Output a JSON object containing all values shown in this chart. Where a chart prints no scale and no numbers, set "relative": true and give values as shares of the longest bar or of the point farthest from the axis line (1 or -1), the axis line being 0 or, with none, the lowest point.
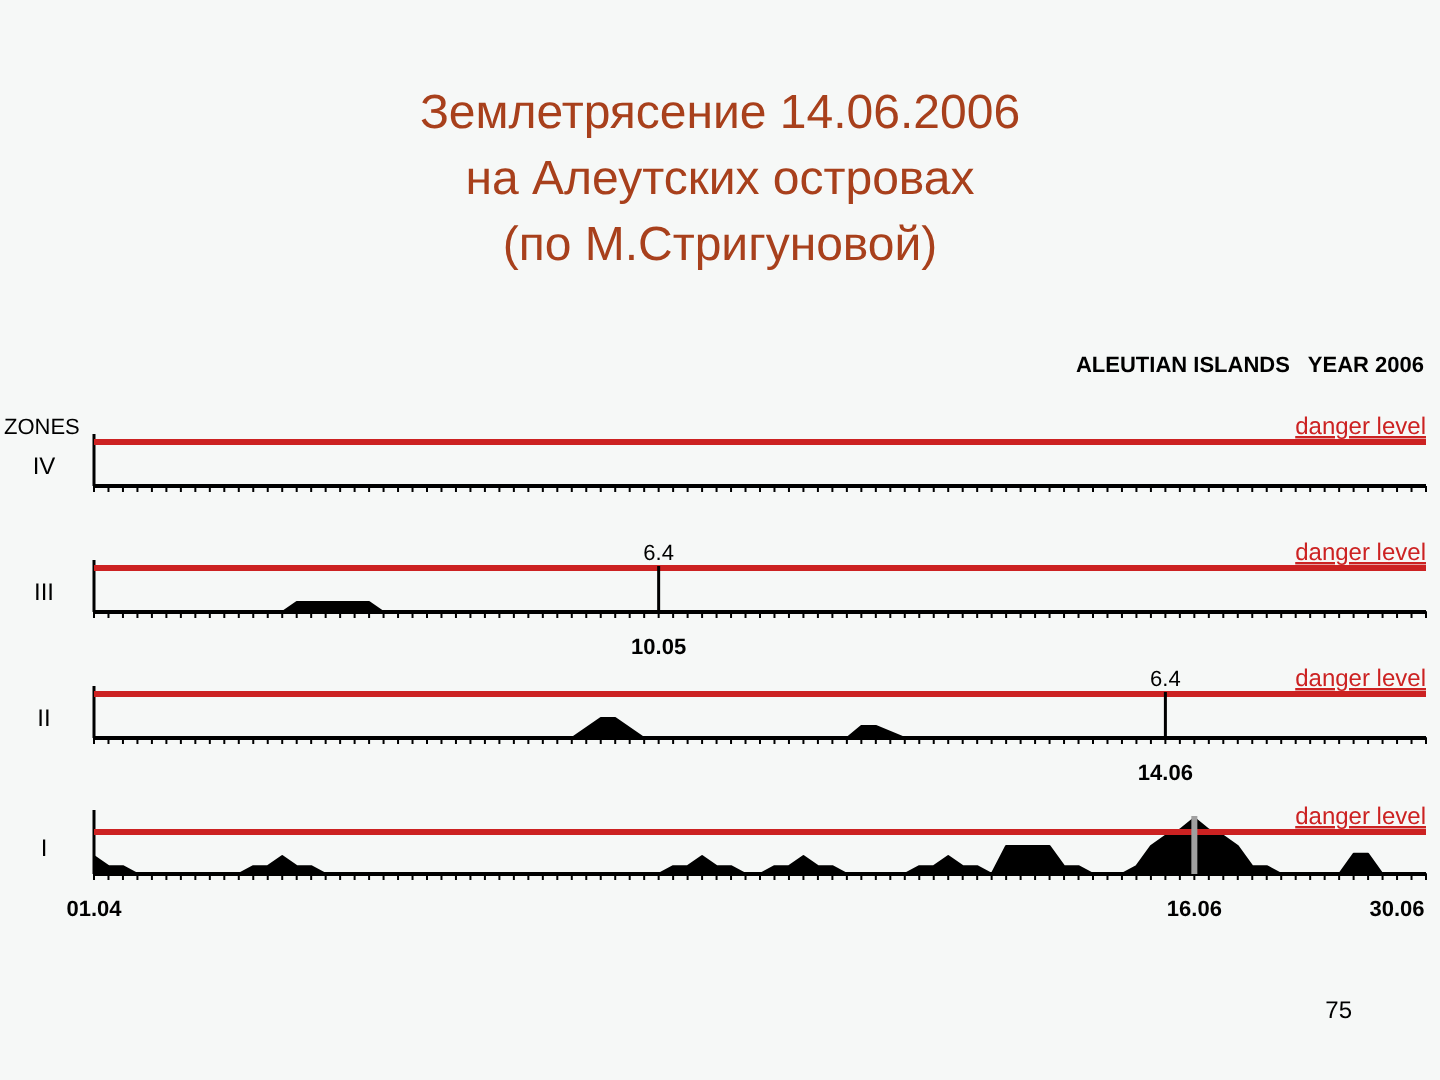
{
  "chart_data": [
    {
      "type": "other",
      "title": "Землетрясение 14.06.2006\nна Алеутских островах\n(по М.Стригуновой)",
      "annotations": [
        "ALEUTIAN ISLANDS   YEAR 2006",
        "ZONES",
        "danger level",
        "75"
      ],
      "ylabel": "IV"
    },
    {
      "type": "area",
      "ylabel": "III",
      "relative": true,
      "tick_labels": false,
      "xlim": [
        "--04-01",
        "--07-02"
      ],
      "annotations": [
        "10.05"
      ],
      "series": [
        {
          "color": "#000000",
          "x": [
            "--04-01",
            "--04-14",
            "--04-15",
            "--04-20",
            "--04-21",
            "--07-02"
          ],
          "values": [
            0,
            0,
            1,
            1,
            0,
            0
          ]
        }
      ],
      "ref_lines": [
        {
          "axis": "y",
          "value": 4.4,
          "label": "danger level",
          "color": "#cc2222"
        },
        {
          "axis": "x",
          "value": "--05-10",
          "label": "6.4",
          "color": "#000000"
        }
      ]
    },
    {
      "type": "area",
      "ylabel": "II",
      "relative": true,
      "tick_labels": false,
      "xlim": [
        "--04-01",
        "--07-02"
      ],
      "annotations": [
        "14.06"
      ],
      "series": [
        {
          "color": "#000000",
          "x": [
            "--04-01",
            "--05-04",
            "--05-06",
            "--05-07",
            "--05-09",
            "--05-23",
            "--05-24",
            "--05-25",
            "--05-27",
            "--07-02"
          ],
          "values": [
            0,
            0,
            1,
            1,
            0,
            0,
            0.6,
            0.6,
            0,
            0
          ]
        }
      ],
      "ref_lines": [
        {
          "axis": "y",
          "value": 2.2,
          "label": "danger level",
          "color": "#cc2222"
        },
        {
          "axis": "x",
          "value": "--06-14",
          "label": "6.4",
          "color": "#000000"
        }
      ]
    },
    {
      "type": "area",
      "ylabel": "I",
      "relative": true,
      "tick_labels": "x",
      "xlim": [
        "--04-01",
        "--07-02"
      ],
      "xticks": [
        {
          "value": "--04-01",
          "label": "01.04"
        },
        {
          "value": "--06-16",
          "label": "16.06"
        },
        {
          "value": "--06-30",
          "label": "30.06"
        }
      ],
      "series": [
        {
          "color": "#000000",
          "x": [
            "--04-01",
            "--04-02",
            "--04-03",
            "--04-04",
            "--04-11",
            "--04-12",
            "--04-13",
            "--04-14",
            "--04-15",
            "--04-16",
            "--04-17",
            "--05-10",
            "--05-11",
            "--05-12",
            "--05-13",
            "--05-14",
            "--05-15",
            "--05-16",
            "--05-17",
            "--05-18",
            "--05-19",
            "--05-20",
            "--05-21",
            "--05-22",
            "--05-23",
            "--05-27",
            "--05-28",
            "--05-29",
            "--05-30",
            "--05-31",
            "--06-01",
            "--06-02",
            "--06-03",
            "--06-06",
            "--06-07",
            "--06-08",
            "--06-09",
            "--06-11",
            "--06-12",
            "--06-13",
            "--06-14",
            "--06-15",
            "--06-16",
            "--06-17",
            "--06-18",
            "--06-19",
            "--06-20",
            "--06-21",
            "--06-22",
            "--06-26",
            "--06-27",
            "--06-28",
            "--06-29",
            "--07-02"
          ],
          "values": [
            0.32,
            0.14,
            0.14,
            0,
            0,
            0.14,
            0.14,
            0.32,
            0.14,
            0.14,
            0,
            0,
            0.14,
            0.14,
            0.32,
            0.14,
            0.14,
            0,
            0,
            0.14,
            0.14,
            0.32,
            0.14,
            0.14,
            0,
            0,
            0.14,
            0.14,
            0.32,
            0.14,
            0.14,
            0,
            0.5,
            0.5,
            0.14,
            0.14,
            0,
            0,
            0.14,
            0.5,
            0.68,
            0.79,
            1,
            0.79,
            0.68,
            0.5,
            0.14,
            0.14,
            0,
            0,
            0.36,
            0.36,
            0,
            0
          ]
        }
      ],
      "ref_lines": [
        {
          "axis": "y",
          "value": 0.75,
          "label": "danger level",
          "color": "#cc2222"
        },
        {
          "axis": "x",
          "value": "--06-16",
          "label": null,
          "color": "#a0a0a0"
        }
      ]
    }
  ]
}
